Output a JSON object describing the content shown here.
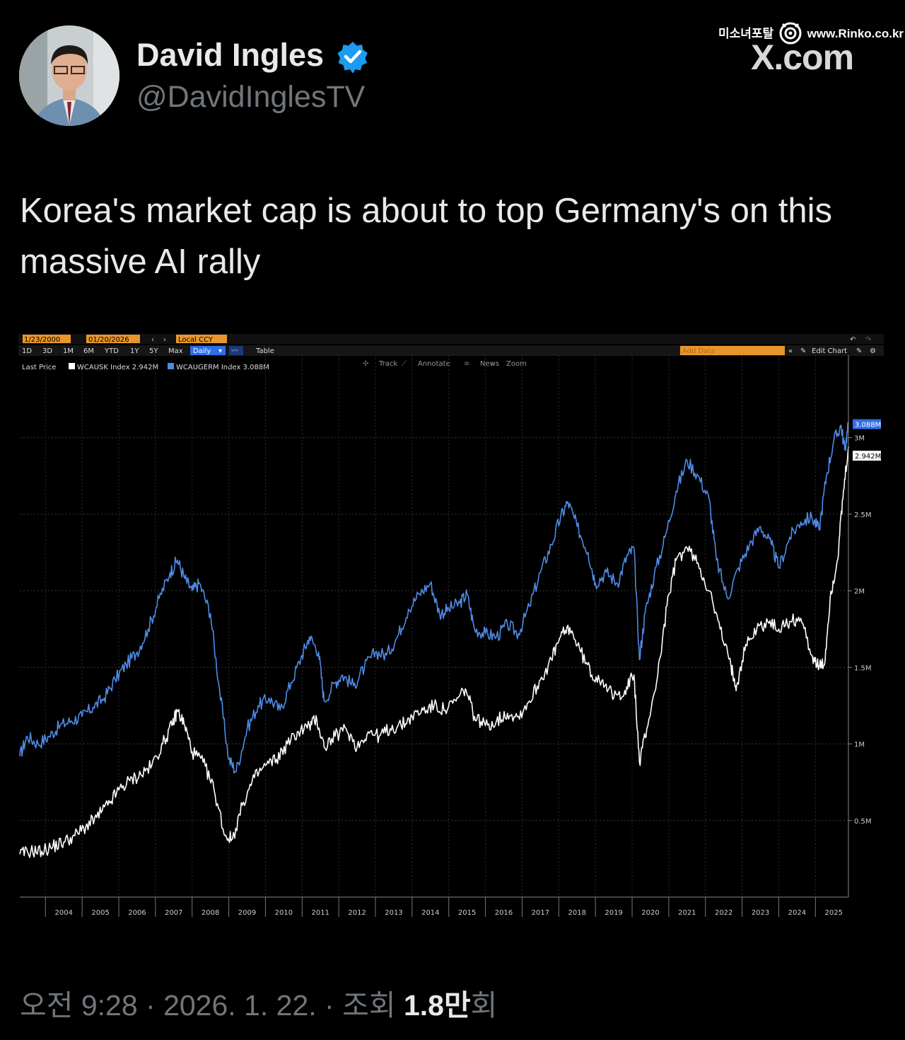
{
  "header": {
    "display_name": "David Ingles",
    "handle": "@DavidInglesTV",
    "avatar_icon": "person-avatar-icon",
    "verified_icon": "verified-badge-icon",
    "verified_color": "#1d9bf0"
  },
  "watermark": {
    "site_name": "미소녀포탈",
    "site_url": "www.Rinko.co.kr",
    "x_label": "X.com"
  },
  "tweet": {
    "text": "Korea's market cap is about to top Germany's on this massive AI rally"
  },
  "terminal": {
    "start_date": "1/23/2000",
    "end_date": "01/20/2026",
    "currency": "Local CCY",
    "periods": [
      "1D",
      "3D",
      "1M",
      "6M",
      "YTD",
      "1Y",
      "5Y",
      "Max"
    ],
    "frequency": "Daily",
    "table_label": "Table",
    "add_data_placeholder": "Add Data",
    "edit_chart_label": "Edit Chart",
    "tools": [
      "Track",
      "Annotate",
      "News",
      "Zoom"
    ],
    "last_price_label": "Last Price"
  },
  "chart_data": {
    "type": "line",
    "x_unit": "year",
    "xlim": [
      2003.3,
      2025.9
    ],
    "ylim": [
      0,
      3.4
    ],
    "x_ticks": [
      "2004",
      "2005",
      "2006",
      "2007",
      "2008",
      "2009",
      "2010",
      "2011",
      "2012",
      "2013",
      "2014",
      "2015",
      "2016",
      "2017",
      "2018",
      "2019",
      "2020",
      "2021",
      "2022",
      "2023",
      "2024",
      "2025"
    ],
    "y_ticks": [
      {
        "value": 0.5,
        "label": "0.5M"
      },
      {
        "value": 1.0,
        "label": "1M"
      },
      {
        "value": 1.5,
        "label": "1.5M"
      },
      {
        "value": 2.0,
        "label": "2M"
      },
      {
        "value": 2.5,
        "label": "2.5M"
      },
      {
        "value": 3.0,
        "label": "3M"
      }
    ],
    "series": [
      {
        "name": "WCAUSK Index",
        "last_value_label": "2.942M",
        "color": "#ffffff",
        "points": [
          [
            2003.3,
            0.28
          ],
          [
            2003.6,
            0.3
          ],
          [
            2003.9,
            0.3
          ],
          [
            2004.2,
            0.33
          ],
          [
            2004.5,
            0.36
          ],
          [
            2004.8,
            0.4
          ],
          [
            2005.1,
            0.46
          ],
          [
            2005.4,
            0.52
          ],
          [
            2005.7,
            0.6
          ],
          [
            2006.0,
            0.7
          ],
          [
            2006.3,
            0.76
          ],
          [
            2006.6,
            0.8
          ],
          [
            2006.9,
            0.86
          ],
          [
            2007.2,
            1.0
          ],
          [
            2007.45,
            1.12
          ],
          [
            2007.6,
            1.22
          ],
          [
            2007.8,
            1.12
          ],
          [
            2008.0,
            0.95
          ],
          [
            2008.3,
            0.88
          ],
          [
            2008.6,
            0.7
          ],
          [
            2008.9,
            0.4
          ],
          [
            2009.1,
            0.38
          ],
          [
            2009.4,
            0.62
          ],
          [
            2009.7,
            0.78
          ],
          [
            2010.0,
            0.86
          ],
          [
            2010.3,
            0.9
          ],
          [
            2010.6,
            1.0
          ],
          [
            2010.9,
            1.08
          ],
          [
            2011.2,
            1.12
          ],
          [
            2011.4,
            1.16
          ],
          [
            2011.6,
            0.98
          ],
          [
            2011.9,
            1.05
          ],
          [
            2012.2,
            1.1
          ],
          [
            2012.5,
            0.98
          ],
          [
            2012.8,
            1.08
          ],
          [
            2013.1,
            1.05
          ],
          [
            2013.4,
            1.1
          ],
          [
            2013.7,
            1.12
          ],
          [
            2014.0,
            1.18
          ],
          [
            2014.3,
            1.22
          ],
          [
            2014.6,
            1.25
          ],
          [
            2014.9,
            1.22
          ],
          [
            2015.2,
            1.28
          ],
          [
            2015.45,
            1.36
          ],
          [
            2015.7,
            1.18
          ],
          [
            2016.0,
            1.12
          ],
          [
            2016.3,
            1.15
          ],
          [
            2016.6,
            1.2
          ],
          [
            2016.9,
            1.18
          ],
          [
            2017.2,
            1.28
          ],
          [
            2017.5,
            1.42
          ],
          [
            2017.8,
            1.55
          ],
          [
            2018.05,
            1.7
          ],
          [
            2018.3,
            1.76
          ],
          [
            2018.6,
            1.6
          ],
          [
            2018.9,
            1.45
          ],
          [
            2019.2,
            1.42
          ],
          [
            2019.5,
            1.3
          ],
          [
            2019.8,
            1.35
          ],
          [
            2020.05,
            1.45
          ],
          [
            2020.2,
            0.88
          ],
          [
            2020.4,
            1.1
          ],
          [
            2020.7,
            1.45
          ],
          [
            2020.95,
            1.9
          ],
          [
            2021.2,
            2.2
          ],
          [
            2021.5,
            2.28
          ],
          [
            2021.8,
            2.18
          ],
          [
            2022.1,
            2.0
          ],
          [
            2022.4,
            1.75
          ],
          [
            2022.7,
            1.5
          ],
          [
            2022.85,
            1.38
          ],
          [
            2023.1,
            1.65
          ],
          [
            2023.4,
            1.75
          ],
          [
            2023.7,
            1.8
          ],
          [
            2024.0,
            1.75
          ],
          [
            2024.3,
            1.8
          ],
          [
            2024.6,
            1.82
          ],
          [
            2024.9,
            1.58
          ],
          [
            2025.1,
            1.5
          ],
          [
            2025.25,
            1.52
          ],
          [
            2025.4,
            1.95
          ],
          [
            2025.6,
            2.2
          ],
          [
            2025.75,
            2.6
          ],
          [
            2025.9,
            2.942
          ]
        ]
      },
      {
        "name": "WCAUGERM Index",
        "last_value_label": "3.088M",
        "color": "#4f8be6",
        "points": [
          [
            2003.3,
            0.92
          ],
          [
            2003.5,
            1.05
          ],
          [
            2003.8,
            1.0
          ],
          [
            2004.1,
            1.05
          ],
          [
            2004.4,
            1.12
          ],
          [
            2004.7,
            1.15
          ],
          [
            2005.0,
            1.18
          ],
          [
            2005.3,
            1.24
          ],
          [
            2005.6,
            1.3
          ],
          [
            2005.9,
            1.42
          ],
          [
            2006.2,
            1.52
          ],
          [
            2006.5,
            1.6
          ],
          [
            2006.8,
            1.75
          ],
          [
            2007.1,
            1.95
          ],
          [
            2007.4,
            2.12
          ],
          [
            2007.6,
            2.2
          ],
          [
            2007.8,
            2.08
          ],
          [
            2008.0,
            2.0
          ],
          [
            2008.2,
            2.05
          ],
          [
            2008.5,
            1.85
          ],
          [
            2008.75,
            1.35
          ],
          [
            2009.0,
            0.9
          ],
          [
            2009.2,
            0.82
          ],
          [
            2009.5,
            1.1
          ],
          [
            2009.8,
            1.25
          ],
          [
            2010.1,
            1.3
          ],
          [
            2010.4,
            1.22
          ],
          [
            2010.7,
            1.4
          ],
          [
            2011.0,
            1.58
          ],
          [
            2011.2,
            1.7
          ],
          [
            2011.45,
            1.6
          ],
          [
            2011.6,
            1.28
          ],
          [
            2011.9,
            1.4
          ],
          [
            2012.1,
            1.45
          ],
          [
            2012.4,
            1.38
          ],
          [
            2012.7,
            1.5
          ],
          [
            2013.0,
            1.6
          ],
          [
            2013.3,
            1.58
          ],
          [
            2013.6,
            1.7
          ],
          [
            2013.9,
            1.88
          ],
          [
            2014.2,
            1.98
          ],
          [
            2014.5,
            2.05
          ],
          [
            2014.75,
            1.85
          ],
          [
            2015.0,
            1.88
          ],
          [
            2015.3,
            1.92
          ],
          [
            2015.5,
            1.98
          ],
          [
            2015.7,
            1.75
          ],
          [
            2016.0,
            1.72
          ],
          [
            2016.3,
            1.7
          ],
          [
            2016.6,
            1.78
          ],
          [
            2016.9,
            1.72
          ],
          [
            2017.2,
            1.9
          ],
          [
            2017.5,
            2.12
          ],
          [
            2017.8,
            2.3
          ],
          [
            2018.05,
            2.48
          ],
          [
            2018.25,
            2.58
          ],
          [
            2018.5,
            2.42
          ],
          [
            2018.8,
            2.25
          ],
          [
            2019.0,
            2.05
          ],
          [
            2019.3,
            2.12
          ],
          [
            2019.6,
            2.05
          ],
          [
            2019.85,
            2.22
          ],
          [
            2020.05,
            2.28
          ],
          [
            2020.2,
            1.55
          ],
          [
            2020.35,
            1.85
          ],
          [
            2020.6,
            2.1
          ],
          [
            2020.9,
            2.35
          ],
          [
            2021.2,
            2.65
          ],
          [
            2021.5,
            2.85
          ],
          [
            2021.8,
            2.75
          ],
          [
            2022.1,
            2.6
          ],
          [
            2022.3,
            2.2
          ],
          [
            2022.6,
            1.95
          ],
          [
            2022.9,
            2.15
          ],
          [
            2023.2,
            2.3
          ],
          [
            2023.5,
            2.42
          ],
          [
            2023.8,
            2.3
          ],
          [
            2024.0,
            2.15
          ],
          [
            2024.3,
            2.35
          ],
          [
            2024.6,
            2.45
          ],
          [
            2024.9,
            2.48
          ],
          [
            2025.1,
            2.4
          ],
          [
            2025.3,
            2.75
          ],
          [
            2025.5,
            2.98
          ],
          [
            2025.7,
            3.08
          ],
          [
            2025.8,
            2.92
          ],
          [
            2025.9,
            3.088
          ]
        ]
      }
    ]
  },
  "footer": {
    "time": "오전 9:28",
    "date": "2026. 1. 22.",
    "views_label": "조회",
    "views_count": "1.8만",
    "views_suffix": "회"
  }
}
